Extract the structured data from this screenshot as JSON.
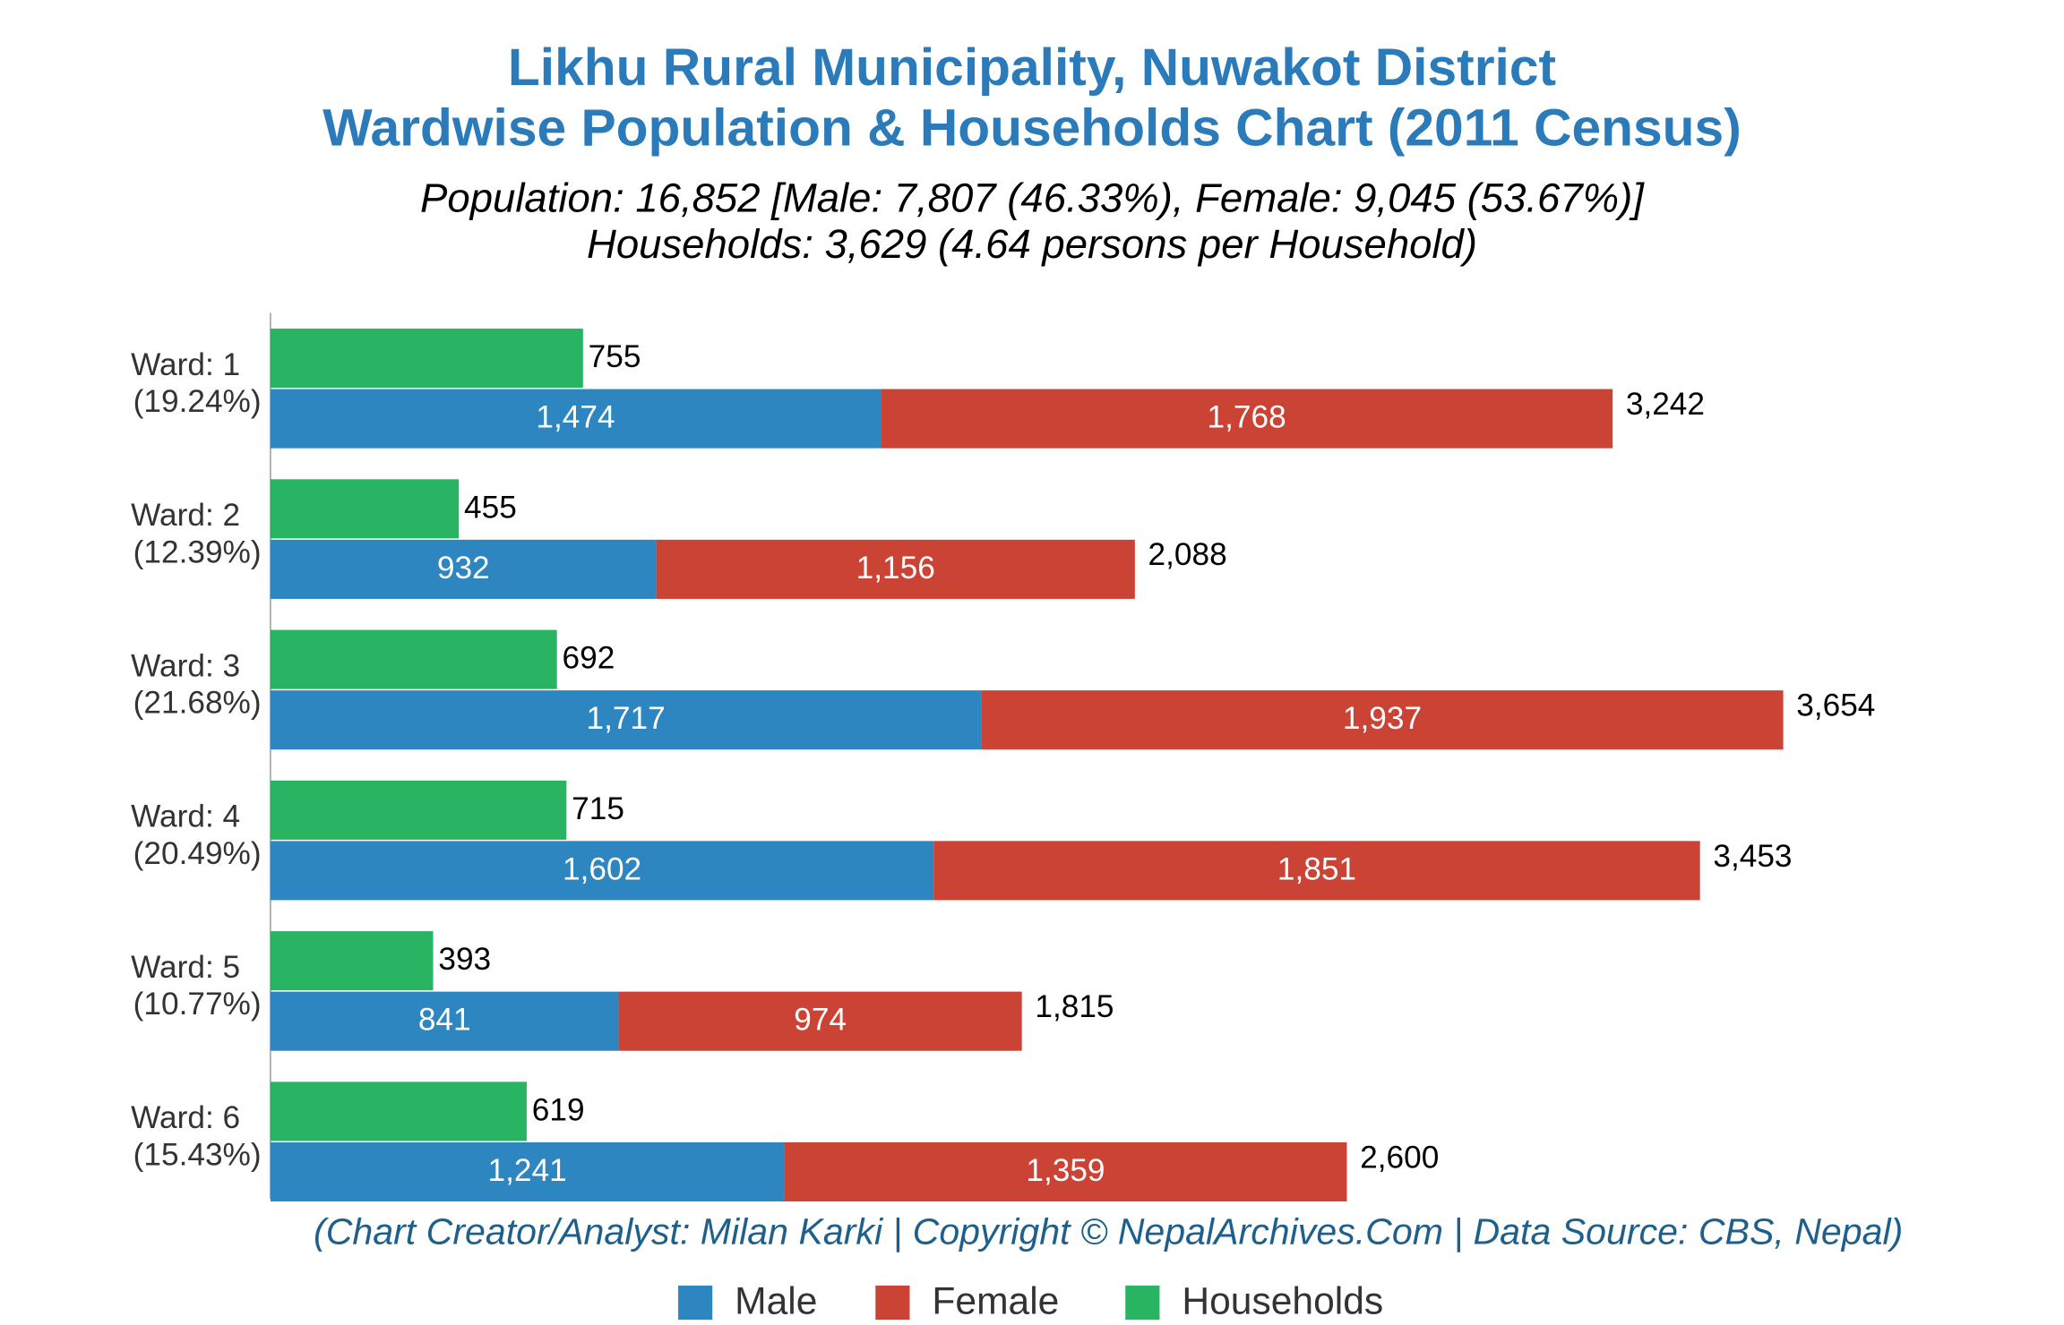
{
  "chart_data": {
    "type": "bar",
    "title": "Likhu Rural Municipality, Nuwakot District",
    "title_line2": "Wardwise Population & Households Chart (2011 Census)",
    "subtitle": "Population: 16,852 [Male: 7,807 (46.33%), Female: 9,045 (53.67%)]",
    "subtitle_line2": "Households: 3,629 (4.64 persons per Household)",
    "footer": "(Chart Creator/Analyst: Milan Karki | Copyright © NepalArchives.Com | Data Source: CBS, Nepal)",
    "categories": [
      "Ward: 1",
      "Ward: 2",
      "Ward: 3",
      "Ward: 4",
      "Ward: 5",
      "Ward: 6"
    ],
    "category_notes": [
      "(19.24%)",
      "(12.39%)",
      "(21.68%)",
      "(20.49%)",
      "(10.77%)",
      "(15.43%)"
    ],
    "series": [
      {
        "name": "Male",
        "color": "#2e86c1",
        "stack": "population",
        "values": [
          1474,
          932,
          1717,
          1602,
          841,
          1241
        ],
        "value_labels": [
          "1,474",
          "932",
          "1,717",
          "1,602",
          "841",
          "1,241"
        ]
      },
      {
        "name": "Female",
        "color": "#cb4335",
        "stack": "population",
        "values": [
          1768,
          1156,
          1937,
          1851,
          974,
          1359
        ],
        "value_labels": [
          "1,768",
          "1,156",
          "1,937",
          "1,851",
          "974",
          "1,359"
        ]
      },
      {
        "name": "Households",
        "color": "#28b463",
        "stack": "households",
        "values": [
          755,
          455,
          692,
          715,
          393,
          619
        ],
        "value_labels": [
          "755",
          "455",
          "692",
          "715",
          "393",
          "619"
        ]
      }
    ],
    "totals": {
      "values": [
        3242,
        2088,
        3654,
        3453,
        1815,
        2600
      ],
      "value_labels": [
        "3,242",
        "2,088",
        "3,654",
        "3,453",
        "1,815",
        "2,600"
      ]
    },
    "xlim": [
      0,
      4200
    ],
    "legend": "bottom"
  }
}
